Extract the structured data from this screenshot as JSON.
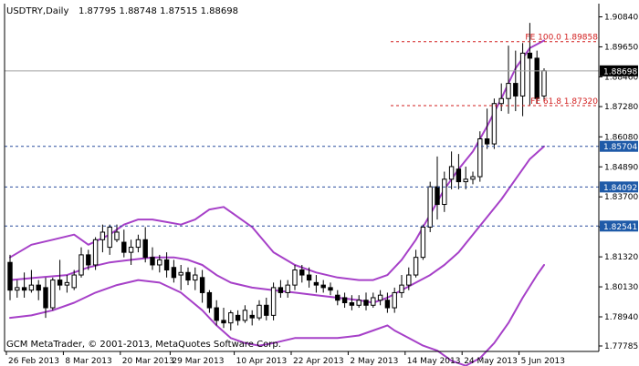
{
  "header": {
    "symbol_timeframe": "USDTRY,Daily",
    "ohlc": "1.87795 1.88748 1.87515 1.88698"
  },
  "footer": {
    "copyright": "GCM MetaTrader, © 2001-2013, MetaQuotes Software Corp."
  },
  "colors": {
    "background": "#ffffff",
    "candle_up": "#ffffff",
    "candle_down": "#000000",
    "bollinger": "#a640c8",
    "fibo": "#d21e1e",
    "level_line": "#2c4f9e",
    "price_line": "#a0a0a0",
    "current_label_bg": "#000000",
    "level_label_bg": "#1e5aa8"
  },
  "chart_data": {
    "type": "candlestick",
    "symbol": "USDTRY",
    "timeframe": "Daily",
    "y_axis_ticks": [
      "1.90840",
      "1.89650",
      "1.88460",
      "1.87280",
      "1.86080",
      "1.84890",
      "1.83700",
      "1.82510",
      "1.81320",
      "1.80130",
      "1.78940",
      "1.77785"
    ],
    "ylim": [
      1.77785,
      1.9084
    ],
    "x_axis_ticks": [
      "26 Feb 2013",
      "8 Mar 2013",
      "20 Mar 2013",
      "29 Mar 2013",
      "10 Apr 2013",
      "22 Apr 2013",
      "2 May 2013",
      "14 May 2013",
      "24 May 2013",
      "5 Jun 2013"
    ],
    "x_tick_index": [
      0,
      8,
      16,
      23,
      32,
      40,
      48,
      56,
      64,
      72
    ],
    "current_price": "1.88698",
    "horizontal_levels": [
      "1.85704",
      "1.84092",
      "1.82541"
    ],
    "fibonacci": [
      {
        "label": "FE 100.0 1.89858",
        "value": 1.89858
      },
      {
        "label": "FE 61.8 1.87320",
        "value": 1.8732
      }
    ],
    "candles": [
      {
        "o": 1.811,
        "h": 1.814,
        "l": 1.796,
        "c": 1.8
      },
      {
        "o": 1.8,
        "h": 1.804,
        "l": 1.797,
        "c": 1.801
      },
      {
        "o": 1.801,
        "h": 1.807,
        "l": 1.797,
        "c": 1.8
      },
      {
        "o": 1.8,
        "h": 1.808,
        "l": 1.799,
        "c": 1.802
      },
      {
        "o": 1.802,
        "h": 1.804,
        "l": 1.796,
        "c": 1.8
      },
      {
        "o": 1.801,
        "h": 1.805,
        "l": 1.789,
        "c": 1.793
      },
      {
        "o": 1.793,
        "h": 1.805,
        "l": 1.792,
        "c": 1.804
      },
      {
        "o": 1.804,
        "h": 1.812,
        "l": 1.8,
        "c": 1.802
      },
      {
        "o": 1.802,
        "h": 1.806,
        "l": 1.799,
        "c": 1.803
      },
      {
        "o": 1.801,
        "h": 1.808,
        "l": 1.8,
        "c": 1.806
      },
      {
        "o": 1.806,
        "h": 1.817,
        "l": 1.805,
        "c": 1.814
      },
      {
        "o": 1.814,
        "h": 1.816,
        "l": 1.808,
        "c": 1.81
      },
      {
        "o": 1.81,
        "h": 1.821,
        "l": 1.808,
        "c": 1.82
      },
      {
        "o": 1.82,
        "h": 1.826,
        "l": 1.815,
        "c": 1.823
      },
      {
        "o": 1.817,
        "h": 1.826,
        "l": 1.814,
        "c": 1.825
      },
      {
        "o": 1.82,
        "h": 1.826,
        "l": 1.819,
        "c": 1.823
      },
      {
        "o": 1.819,
        "h": 1.824,
        "l": 1.813,
        "c": 1.815
      },
      {
        "o": 1.815,
        "h": 1.82,
        "l": 1.81,
        "c": 1.817
      },
      {
        "o": 1.817,
        "h": 1.822,
        "l": 1.815,
        "c": 1.82
      },
      {
        "o": 1.82,
        "h": 1.825,
        "l": 1.811,
        "c": 1.813
      },
      {
        "o": 1.813,
        "h": 1.817,
        "l": 1.808,
        "c": 1.81
      },
      {
        "o": 1.81,
        "h": 1.814,
        "l": 1.807,
        "c": 1.812
      },
      {
        "o": 1.812,
        "h": 1.815,
        "l": 1.805,
        "c": 1.808
      },
      {
        "o": 1.809,
        "h": 1.812,
        "l": 1.803,
        "c": 1.805
      },
      {
        "o": 1.806,
        "h": 1.81,
        "l": 1.8,
        "c": 1.807
      },
      {
        "o": 1.807,
        "h": 1.809,
        "l": 1.802,
        "c": 1.804
      },
      {
        "o": 1.804,
        "h": 1.809,
        "l": 1.8,
        "c": 1.806
      },
      {
        "o": 1.805,
        "h": 1.808,
        "l": 1.795,
        "c": 1.799
      },
      {
        "o": 1.799,
        "h": 1.8,
        "l": 1.791,
        "c": 1.793
      },
      {
        "o": 1.793,
        "h": 1.796,
        "l": 1.786,
        "c": 1.788
      },
      {
        "o": 1.788,
        "h": 1.793,
        "l": 1.785,
        "c": 1.787
      },
      {
        "o": 1.787,
        "h": 1.792,
        "l": 1.784,
        "c": 1.791
      },
      {
        "o": 1.79,
        "h": 1.792,
        "l": 1.786,
        "c": 1.788
      },
      {
        "o": 1.788,
        "h": 1.794,
        "l": 1.787,
        "c": 1.792
      },
      {
        "o": 1.79,
        "h": 1.792,
        "l": 1.786,
        "c": 1.789
      },
      {
        "o": 1.789,
        "h": 1.796,
        "l": 1.788,
        "c": 1.794
      },
      {
        "o": 1.794,
        "h": 1.797,
        "l": 1.788,
        "c": 1.79
      },
      {
        "o": 1.79,
        "h": 1.803,
        "l": 1.788,
        "c": 1.801
      },
      {
        "o": 1.801,
        "h": 1.804,
        "l": 1.797,
        "c": 1.799
      },
      {
        "o": 1.799,
        "h": 1.804,
        "l": 1.797,
        "c": 1.802
      },
      {
        "o": 1.802,
        "h": 1.81,
        "l": 1.8,
        "c": 1.808
      },
      {
        "o": 1.808,
        "h": 1.81,
        "l": 1.803,
        "c": 1.806
      },
      {
        "o": 1.806,
        "h": 1.809,
        "l": 1.801,
        "c": 1.804
      },
      {
        "o": 1.803,
        "h": 1.806,
        "l": 1.799,
        "c": 1.802
      },
      {
        "o": 1.802,
        "h": 1.804,
        "l": 1.799,
        "c": 1.801
      },
      {
        "o": 1.801,
        "h": 1.803,
        "l": 1.798,
        "c": 1.8
      },
      {
        "o": 1.798,
        "h": 1.8,
        "l": 1.794,
        "c": 1.796
      },
      {
        "o": 1.797,
        "h": 1.799,
        "l": 1.793,
        "c": 1.795
      },
      {
        "o": 1.795,
        "h": 1.798,
        "l": 1.792,
        "c": 1.794
      },
      {
        "o": 1.794,
        "h": 1.798,
        "l": 1.793,
        "c": 1.796
      },
      {
        "o": 1.796,
        "h": 1.799,
        "l": 1.792,
        "c": 1.794
      },
      {
        "o": 1.794,
        "h": 1.799,
        "l": 1.793,
        "c": 1.797
      },
      {
        "o": 1.796,
        "h": 1.8,
        "l": 1.794,
        "c": 1.798
      },
      {
        "o": 1.796,
        "h": 1.799,
        "l": 1.791,
        "c": 1.793
      },
      {
        "o": 1.793,
        "h": 1.801,
        "l": 1.791,
        "c": 1.799
      },
      {
        "o": 1.799,
        "h": 1.806,
        "l": 1.797,
        "c": 1.802
      },
      {
        "o": 1.802,
        "h": 1.809,
        "l": 1.8,
        "c": 1.806
      },
      {
        "o": 1.806,
        "h": 1.816,
        "l": 1.805,
        "c": 1.813
      },
      {
        "o": 1.813,
        "h": 1.826,
        "l": 1.812,
        "c": 1.825
      },
      {
        "o": 1.825,
        "h": 1.843,
        "l": 1.823,
        "c": 1.841
      },
      {
        "o": 1.841,
        "h": 1.853,
        "l": 1.828,
        "c": 1.834
      },
      {
        "o": 1.834,
        "h": 1.847,
        "l": 1.831,
        "c": 1.844
      },
      {
        "o": 1.844,
        "h": 1.855,
        "l": 1.84,
        "c": 1.849
      },
      {
        "o": 1.848,
        "h": 1.854,
        "l": 1.84,
        "c": 1.843
      },
      {
        "o": 1.843,
        "h": 1.849,
        "l": 1.84,
        "c": 1.844
      },
      {
        "o": 1.844,
        "h": 1.847,
        "l": 1.842,
        "c": 1.845
      },
      {
        "o": 1.845,
        "h": 1.863,
        "l": 1.843,
        "c": 1.86
      },
      {
        "o": 1.86,
        "h": 1.872,
        "l": 1.856,
        "c": 1.858
      },
      {
        "o": 1.858,
        "h": 1.876,
        "l": 1.856,
        "c": 1.874
      },
      {
        "o": 1.874,
        "h": 1.882,
        "l": 1.871,
        "c": 1.876
      },
      {
        "o": 1.876,
        "h": 1.897,
        "l": 1.87,
        "c": 1.882
      },
      {
        "o": 1.882,
        "h": 1.895,
        "l": 1.871,
        "c": 1.877
      },
      {
        "o": 1.877,
        "h": 1.898,
        "l": 1.869,
        "c": 1.894
      },
      {
        "o": 1.894,
        "h": 1.906,
        "l": 1.873,
        "c": 1.892
      },
      {
        "o": 1.892,
        "h": 1.895,
        "l": 1.874,
        "c": 1.876
      },
      {
        "o": 1.877,
        "h": 1.888,
        "l": 1.875,
        "c": 1.887
      }
    ],
    "bollinger_bands": [
      {
        "name": "upper",
        "points": [
          [
            0,
            1.813
          ],
          [
            3,
            1.818
          ],
          [
            6,
            1.82
          ],
          [
            9,
            1.822
          ],
          [
            11,
            1.818
          ],
          [
            14,
            1.822
          ],
          [
            16,
            1.826
          ],
          [
            18,
            1.828
          ],
          [
            20,
            1.828
          ],
          [
            22,
            1.827
          ],
          [
            24,
            1.826
          ],
          [
            26,
            1.828
          ],
          [
            28,
            1.832
          ],
          [
            30,
            1.833
          ],
          [
            31,
            1.831
          ],
          [
            34,
            1.825
          ],
          [
            37,
            1.815
          ],
          [
            40,
            1.81
          ],
          [
            43,
            1.807
          ],
          [
            46,
            1.805
          ],
          [
            49,
            1.804
          ],
          [
            51,
            1.804
          ],
          [
            53,
            1.806
          ],
          [
            55,
            1.812
          ],
          [
            57,
            1.82
          ],
          [
            59,
            1.83
          ],
          [
            61,
            1.84
          ],
          [
            63,
            1.848
          ],
          [
            65,
            1.855
          ],
          [
            67,
            1.865
          ],
          [
            69,
            1.876
          ],
          [
            71,
            1.888
          ],
          [
            73,
            1.896
          ],
          [
            75,
            1.899
          ]
        ]
      },
      {
        "name": "middle",
        "points": [
          [
            0,
            1.804
          ],
          [
            4,
            1.805
          ],
          [
            8,
            1.806
          ],
          [
            11,
            1.809
          ],
          [
            14,
            1.811
          ],
          [
            17,
            1.812
          ],
          [
            20,
            1.813
          ],
          [
            23,
            1.813
          ],
          [
            25,
            1.812
          ],
          [
            27,
            1.81
          ],
          [
            29,
            1.806
          ],
          [
            31,
            1.803
          ],
          [
            34,
            1.801
          ],
          [
            37,
            1.8
          ],
          [
            40,
            1.799
          ],
          [
            43,
            1.798
          ],
          [
            46,
            1.797
          ],
          [
            49,
            1.796
          ],
          [
            51,
            1.795
          ],
          [
            53,
            1.797
          ],
          [
            55,
            1.8
          ],
          [
            57,
            1.803
          ],
          [
            59,
            1.806
          ],
          [
            61,
            1.81
          ],
          [
            63,
            1.815
          ],
          [
            65,
            1.822
          ],
          [
            67,
            1.829
          ],
          [
            69,
            1.836
          ],
          [
            71,
            1.844
          ],
          [
            73,
            1.852
          ],
          [
            75,
            1.857
          ]
        ]
      },
      {
        "name": "lower",
        "points": [
          [
            0,
            1.789
          ],
          [
            3,
            1.79
          ],
          [
            6,
            1.792
          ],
          [
            9,
            1.795
          ],
          [
            12,
            1.799
          ],
          [
            15,
            1.802
          ],
          [
            18,
            1.804
          ],
          [
            21,
            1.803
          ],
          [
            24,
            1.799
          ],
          [
            27,
            1.792
          ],
          [
            29,
            1.786
          ],
          [
            31,
            1.781
          ],
          [
            33,
            1.779
          ],
          [
            35,
            1.778
          ],
          [
            37,
            1.779
          ],
          [
            40,
            1.781
          ],
          [
            43,
            1.781
          ],
          [
            46,
            1.781
          ],
          [
            49,
            1.782
          ],
          [
            51,
            1.784
          ],
          [
            53,
            1.786
          ],
          [
            54,
            1.784
          ],
          [
            56,
            1.781
          ],
          [
            58,
            1.778
          ],
          [
            60,
            1.776
          ],
          [
            62,
            1.772
          ],
          [
            64,
            1.77
          ],
          [
            66,
            1.773
          ],
          [
            68,
            1.779
          ],
          [
            70,
            1.787
          ],
          [
            72,
            1.797
          ],
          [
            74,
            1.806
          ],
          [
            75,
            1.81
          ]
        ]
      }
    ]
  }
}
